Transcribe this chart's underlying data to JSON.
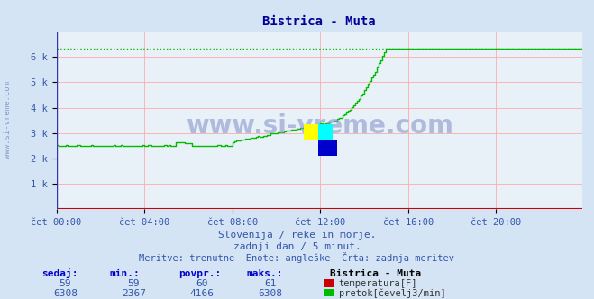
{
  "title": "Bistrica - Muta",
  "bg_color": "#d4e4f4",
  "plot_bg_color": "#e8f0f8",
  "grid_color": "#ffaaaa",
  "x_min": 0,
  "x_max": 287,
  "y_min": 0,
  "y_max": 7000,
  "yticks": [
    1000,
    2000,
    3000,
    4000,
    5000,
    6000
  ],
  "ytick_labels": [
    "1 k",
    "2 k",
    "3 k",
    "4 k",
    "5 k",
    "6 k"
  ],
  "xtick_positions": [
    0,
    48,
    96,
    144,
    192,
    240
  ],
  "xtick_labels": [
    "čet 00:00",
    "čet 04:00",
    "čet 08:00",
    "čet 12:00",
    "čet 16:00",
    "čet 20:00"
  ],
  "watermark": "www.si-vreme.com",
  "subtitle1": "Slovenija / reke in morje.",
  "subtitle2": "zadnji dan / 5 minut.",
  "subtitle3": "Meritve: trenutne  Enote: angleške  Črta: zadnja meritev",
  "legend_title": "Bistrica - Muta",
  "stats_headers": [
    "sedaj:",
    "min.:",
    "povpr.:",
    "maks.:"
  ],
  "stats_temp": [
    59,
    59,
    60,
    61
  ],
  "stats_flow": [
    6308,
    2367,
    4166,
    6308
  ],
  "temp_color": "#cc0000",
  "flow_color": "#00bb00",
  "axis_color": "#cc0000",
  "title_color": "#000099",
  "label_color": "#3355aa",
  "header_color": "#0000cc",
  "watermark_color": "#8899cc",
  "temp_label": "temperatura[F]",
  "flow_label": "pretok[čevelj3/min]"
}
